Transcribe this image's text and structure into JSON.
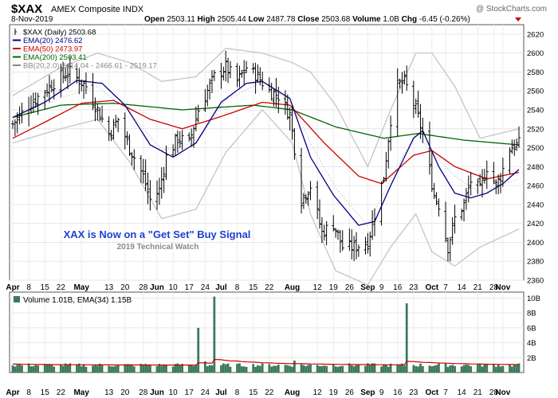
{
  "header": {
    "symbol": "$XAX",
    "name": "AMEX Composite INDX",
    "watermark": "@ StockCharts.com",
    "date": "8-Nov-2019",
    "quote": {
      "open_label": "Open",
      "open": "2503.11",
      "high_label": "High",
      "high": "2505.44",
      "low_label": "Low",
      "low": "2487.78",
      "close_label": "Close",
      "close": "2503.68",
      "volume_label": "Volume",
      "volume": "1.0B",
      "chg_label": "Chg",
      "chg": "-6.45 (-0.26%)"
    }
  },
  "legend": [
    {
      "text": "$XAX (Daily) 2503.68",
      "color": "#000000"
    },
    {
      "text": "EMA(20) 2476.62",
      "color": "#000080"
    },
    {
      "text": "EMA(50) 2473.97",
      "color": "#cc0000"
    },
    {
      "text": "EMA(200) 2503.41",
      "color": "#006400"
    },
    {
      "text": "BB(20,2.0) 2414.04 - 2466.61 - 2519.17",
      "color": "#888888"
    }
  ],
  "annotation": {
    "title": "XAX is Now on a \"Get Set\" Buy Signal",
    "subtitle": "2019 Technical Watch",
    "title_color": "#1f3fd1",
    "subtitle_color": "#8a8a8a"
  },
  "volume_legend": "Volume 1.01B, EMA(34) 1.15B",
  "colors": {
    "bars": "#000000",
    "ema20": "#000080",
    "ema50": "#cc0000",
    "ema200": "#006400",
    "bb": "#c0c0c0",
    "volume_bar": "#3a7a5a",
    "volume_ema": "#cc0000",
    "chg_arrow": "#cc0000"
  },
  "chart_data": {
    "type": "line",
    "price_ylim": [
      2360,
      2630
    ],
    "price_ticks": [
      2360,
      2380,
      2400,
      2420,
      2440,
      2460,
      2480,
      2500,
      2520,
      2540,
      2560,
      2580,
      2600,
      2620
    ],
    "volume_ylim": [
      0,
      10.8
    ],
    "volume_ticks": [
      {
        "v": 2,
        "label": "2B"
      },
      {
        "v": 4,
        "label": "4B"
      },
      {
        "v": 6,
        "label": "6B"
      },
      {
        "v": 8,
        "label": "8B"
      },
      {
        "v": 10,
        "label": "10B"
      }
    ],
    "x_start": "2019-04-01",
    "x_end": "2019-11-08",
    "x_tick_labels": [
      {
        "d": "2019-04-01",
        "t": "Apr",
        "bold": true
      },
      {
        "d": "2019-04-08",
        "t": "8"
      },
      {
        "d": "2019-04-15",
        "t": "15"
      },
      {
        "d": "2019-04-22",
        "t": "22"
      },
      {
        "d": "2019-05-01",
        "t": "May",
        "bold": true
      },
      {
        "d": "2019-05-13",
        "t": "13"
      },
      {
        "d": "2019-05-20",
        "t": "20"
      },
      {
        "d": "2019-05-28",
        "t": "28"
      },
      {
        "d": "2019-06-03",
        "t": "Jun",
        "bold": true
      },
      {
        "d": "2019-06-10",
        "t": "10"
      },
      {
        "d": "2019-06-17",
        "t": "17"
      },
      {
        "d": "2019-06-24",
        "t": "24"
      },
      {
        "d": "2019-07-01",
        "t": "Jul",
        "bold": true
      },
      {
        "d": "2019-07-08",
        "t": "8"
      },
      {
        "d": "2019-07-15",
        "t": "15"
      },
      {
        "d": "2019-07-22",
        "t": "22"
      },
      {
        "d": "2019-08-01",
        "t": "Aug",
        "bold": true
      },
      {
        "d": "2019-08-12",
        "t": "12"
      },
      {
        "d": "2019-08-19",
        "t": "19"
      },
      {
        "d": "2019-08-26",
        "t": "26"
      },
      {
        "d": "2019-09-03",
        "t": "Sep",
        "bold": true
      },
      {
        "d": "2019-09-09",
        "t": "9"
      },
      {
        "d": "2019-09-16",
        "t": "16"
      },
      {
        "d": "2019-09-23",
        "t": "23"
      },
      {
        "d": "2019-10-01",
        "t": "Oct",
        "bold": true
      },
      {
        "d": "2019-10-07",
        "t": "7"
      },
      {
        "d": "2019-10-14",
        "t": "14"
      },
      {
        "d": "2019-10-21",
        "t": "21"
      },
      {
        "d": "2019-10-28",
        "t": "28"
      },
      {
        "d": "2019-11-01",
        "t": "Nov",
        "bold": true
      }
    ],
    "close_anchors": [
      [
        "2019-04-01",
        2525
      ],
      [
        "2019-04-08",
        2545
      ],
      [
        "2019-04-15",
        2560
      ],
      [
        "2019-04-22",
        2575
      ],
      [
        "2019-04-26",
        2580
      ],
      [
        "2019-05-03",
        2565
      ],
      [
        "2019-05-07",
        2545
      ],
      [
        "2019-05-13",
        2515
      ],
      [
        "2019-05-17",
        2530
      ],
      [
        "2019-05-22",
        2500
      ],
      [
        "2019-05-28",
        2470
      ],
      [
        "2019-05-31",
        2445
      ],
      [
        "2019-06-04",
        2455
      ],
      [
        "2019-06-07",
        2490
      ],
      [
        "2019-06-12",
        2510
      ],
      [
        "2019-06-17",
        2505
      ],
      [
        "2019-06-21",
        2540
      ],
      [
        "2019-06-25",
        2560
      ],
      [
        "2019-06-28",
        2575
      ],
      [
        "2019-07-03",
        2585
      ],
      [
        "2019-07-08",
        2570
      ],
      [
        "2019-07-12",
        2585
      ],
      [
        "2019-07-17",
        2575
      ],
      [
        "2019-07-22",
        2560
      ],
      [
        "2019-07-26",
        2555
      ],
      [
        "2019-07-31",
        2535
      ],
      [
        "2019-08-02",
        2500
      ],
      [
        "2019-08-05",
        2445
      ],
      [
        "2019-08-09",
        2460
      ],
      [
        "2019-08-14",
        2410
      ],
      [
        "2019-08-19",
        2420
      ],
      [
        "2019-08-23",
        2395
      ],
      [
        "2019-08-28",
        2395
      ],
      [
        "2019-09-03",
        2400
      ],
      [
        "2019-09-06",
        2430
      ],
      [
        "2019-09-10",
        2470
      ],
      [
        "2019-09-13",
        2530
      ],
      [
        "2019-09-16",
        2565
      ],
      [
        "2019-09-19",
        2570
      ],
      [
        "2019-09-24",
        2540
      ],
      [
        "2019-09-27",
        2515
      ],
      [
        "2019-10-02",
        2450
      ],
      [
        "2019-10-04",
        2440
      ],
      [
        "2019-10-08",
        2395
      ],
      [
        "2019-10-11",
        2425
      ],
      [
        "2019-10-15",
        2440
      ],
      [
        "2019-10-18",
        2465
      ],
      [
        "2019-10-22",
        2455
      ],
      [
        "2019-10-25",
        2480
      ],
      [
        "2019-10-29",
        2460
      ],
      [
        "2019-10-31",
        2470
      ],
      [
        "2019-11-04",
        2500
      ],
      [
        "2019-11-08",
        2504
      ]
    ],
    "ema20_anchors": [
      [
        "2019-04-01",
        2532
      ],
      [
        "2019-04-15",
        2548
      ],
      [
        "2019-04-29",
        2571
      ],
      [
        "2019-05-10",
        2568
      ],
      [
        "2019-05-20",
        2545
      ],
      [
        "2019-05-31",
        2503
      ],
      [
        "2019-06-10",
        2490
      ],
      [
        "2019-06-20",
        2505
      ],
      [
        "2019-07-01",
        2548
      ],
      [
        "2019-07-12",
        2568
      ],
      [
        "2019-07-19",
        2570
      ],
      [
        "2019-07-31",
        2552
      ],
      [
        "2019-08-09",
        2490
      ],
      [
        "2019-08-19",
        2450
      ],
      [
        "2019-08-30",
        2418
      ],
      [
        "2019-09-06",
        2422
      ],
      [
        "2019-09-13",
        2460
      ],
      [
        "2019-09-23",
        2510
      ],
      [
        "2019-09-27",
        2518
      ],
      [
        "2019-10-04",
        2480
      ],
      [
        "2019-10-11",
        2452
      ],
      [
        "2019-10-18",
        2447
      ],
      [
        "2019-10-25",
        2452
      ],
      [
        "2019-11-01",
        2462
      ],
      [
        "2019-11-08",
        2477
      ]
    ],
    "ema50_anchors": [
      [
        "2019-04-01",
        2510
      ],
      [
        "2019-04-15",
        2527
      ],
      [
        "2019-05-01",
        2547
      ],
      [
        "2019-05-15",
        2550
      ],
      [
        "2019-05-31",
        2530
      ],
      [
        "2019-06-14",
        2520
      ],
      [
        "2019-07-01",
        2533
      ],
      [
        "2019-07-19",
        2548
      ],
      [
        "2019-07-31",
        2545
      ],
      [
        "2019-08-15",
        2505
      ],
      [
        "2019-08-30",
        2470
      ],
      [
        "2019-09-09",
        2462
      ],
      [
        "2019-09-23",
        2492
      ],
      [
        "2019-10-01",
        2497
      ],
      [
        "2019-10-11",
        2480
      ],
      [
        "2019-10-25",
        2467
      ],
      [
        "2019-11-08",
        2474
      ]
    ],
    "ema200_anchors": [
      [
        "2019-04-01",
        2532
      ],
      [
        "2019-04-22",
        2545
      ],
      [
        "2019-05-15",
        2547
      ],
      [
        "2019-06-14",
        2540
      ],
      [
        "2019-07-15",
        2545
      ],
      [
        "2019-08-01",
        2540
      ],
      [
        "2019-08-20",
        2522
      ],
      [
        "2019-09-10",
        2510
      ],
      [
        "2019-09-25",
        2515
      ],
      [
        "2019-10-15",
        2508
      ],
      [
        "2019-11-08",
        2503
      ]
    ],
    "bb_upper_anchors": [
      [
        "2019-04-01",
        2555
      ],
      [
        "2019-04-22",
        2585
      ],
      [
        "2019-05-08",
        2600
      ],
      [
        "2019-05-22",
        2590
      ],
      [
        "2019-06-05",
        2570
      ],
      [
        "2019-06-20",
        2575
      ],
      [
        "2019-07-03",
        2605
      ],
      [
        "2019-07-19",
        2600
      ],
      [
        "2019-08-01",
        2590
      ],
      [
        "2019-08-09",
        2580
      ],
      [
        "2019-08-20",
        2545
      ],
      [
        "2019-09-03",
        2480
      ],
      [
        "2019-09-13",
        2540
      ],
      [
        "2019-09-24",
        2600
      ],
      [
        "2019-10-01",
        2600
      ],
      [
        "2019-10-11",
        2565
      ],
      [
        "2019-10-22",
        2510
      ],
      [
        "2019-11-08",
        2520
      ]
    ],
    "bb_lower_anchors": [
      [
        "2019-04-01",
        2505
      ],
      [
        "2019-04-22",
        2520
      ],
      [
        "2019-05-08",
        2530
      ],
      [
        "2019-05-22",
        2485
      ],
      [
        "2019-06-05",
        2425
      ],
      [
        "2019-06-20",
        2435
      ],
      [
        "2019-07-03",
        2495
      ],
      [
        "2019-07-19",
        2540
      ],
      [
        "2019-08-01",
        2505
      ],
      [
        "2019-08-09",
        2430
      ],
      [
        "2019-08-20",
        2370
      ],
      [
        "2019-09-03",
        2355
      ],
      [
        "2019-09-13",
        2395
      ],
      [
        "2019-09-24",
        2430
      ],
      [
        "2019-10-01",
        2390
      ],
      [
        "2019-10-11",
        2375
      ],
      [
        "2019-10-22",
        2395
      ],
      [
        "2019-11-08",
        2414
      ]
    ],
    "volume_base": 1.0,
    "volume_spikes": [
      {
        "d": "2019-06-21",
        "v": 6.0
      },
      {
        "d": "2019-06-28",
        "v": 10.2
      },
      {
        "d": "2019-09-20",
        "v": 9.3
      },
      {
        "d": "2019-08-02",
        "v": 1.6
      },
      {
        "d": "2019-06-24",
        "v": 1.5
      }
    ],
    "volume_ema_level": 1.15
  }
}
